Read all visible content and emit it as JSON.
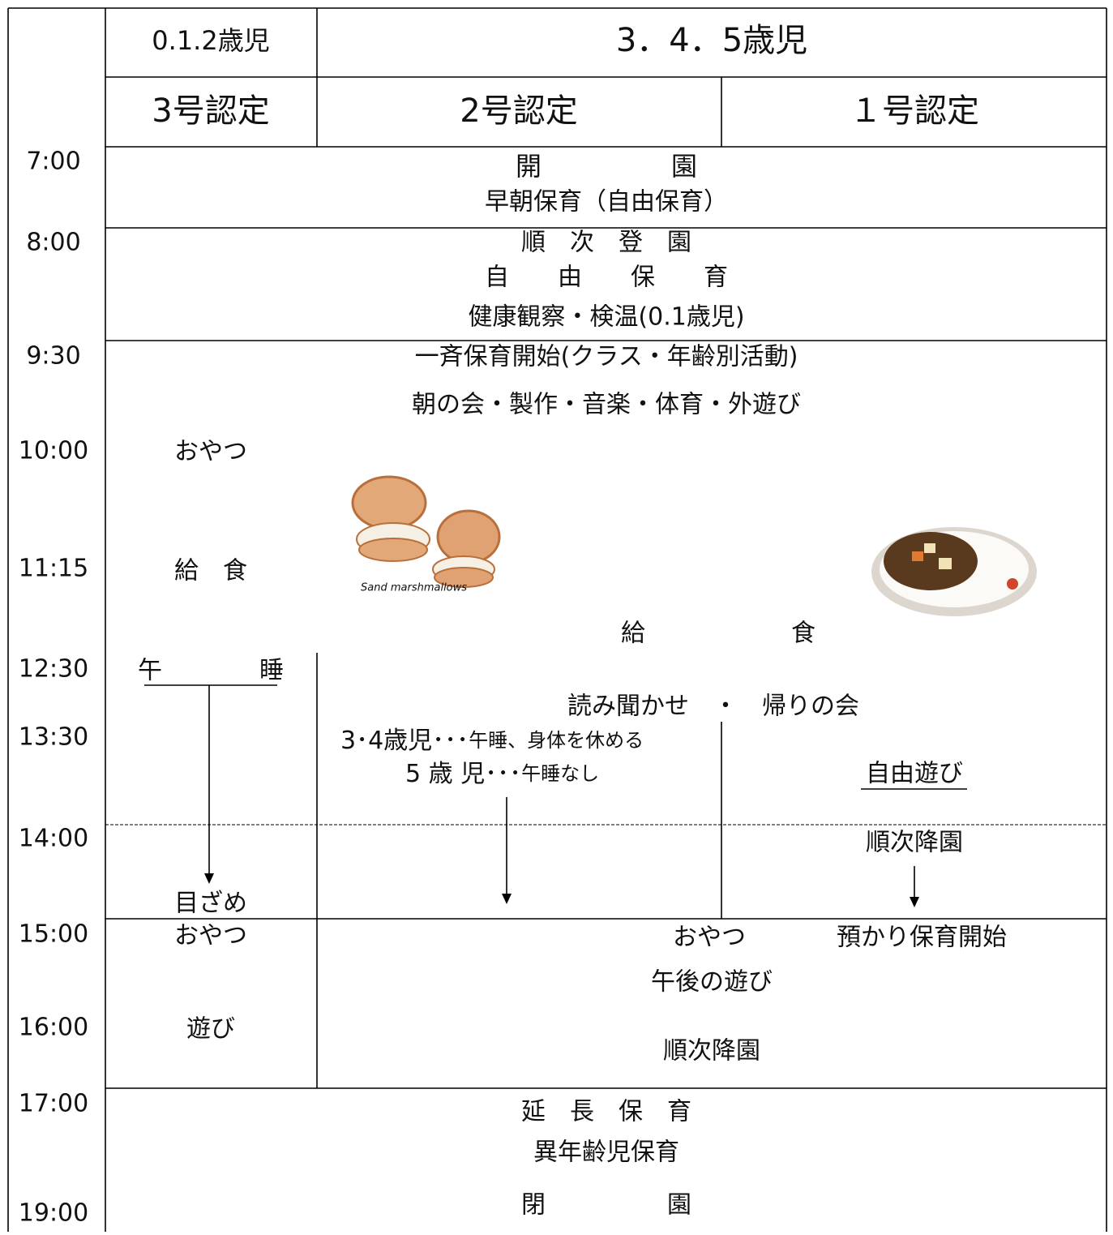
{
  "header": {
    "row1": [
      "0.1.2歳児",
      "3．4．5歳児"
    ],
    "row2": [
      "3号認定",
      "2号認定",
      "１号認定"
    ]
  },
  "times": [
    "7:00",
    "8:00",
    "9:30",
    "10:00",
    "11:15",
    "12:30",
    "13:30",
    "14:00",
    "15:00",
    "16:00",
    "17:00",
    "19:00"
  ],
  "early": {
    "lines": [
      "開　　　　　園",
      "早朝保育（自由保育）"
    ]
  },
  "morning": {
    "lines": [
      "順　次　登　園",
      "自　　由　　保　　育",
      "健康観察・検温(0.1歳児)"
    ]
  },
  "class_time": {
    "lines": [
      "一斉保育開始(クラス・年齢別活動)",
      "朝の会・製作・音楽・体育・外遊び"
    ]
  },
  "infants": {
    "snack_am": "おやつ",
    "lunch": "給　食",
    "nap": "午　　　　睡",
    "wake": "目ざめ",
    "snack_pm": "おやつ",
    "play": "遊び"
  },
  "older": {
    "lunch": "給　　　　　　食",
    "story": "読み聞かせ　・　帰りの会",
    "age34": [
      "3･4歳児･･･",
      "午睡、身体を休める"
    ],
    "age5": [
      "5 歳 児･･･",
      "午睡なし"
    ],
    "free_play": "自由遊び",
    "pickup": "順次降園",
    "snack_pm": "おやつ",
    "extended_care": "預かり保育開始",
    "afternoon_play": "午後の遊び",
    "pickup_pm": "順次降園"
  },
  "illustration_caption": "Sand marshmallows",
  "evening": {
    "lines": [
      "延　長　保　育",
      "異年齢児保育",
      "閉　　　　　園"
    ]
  }
}
